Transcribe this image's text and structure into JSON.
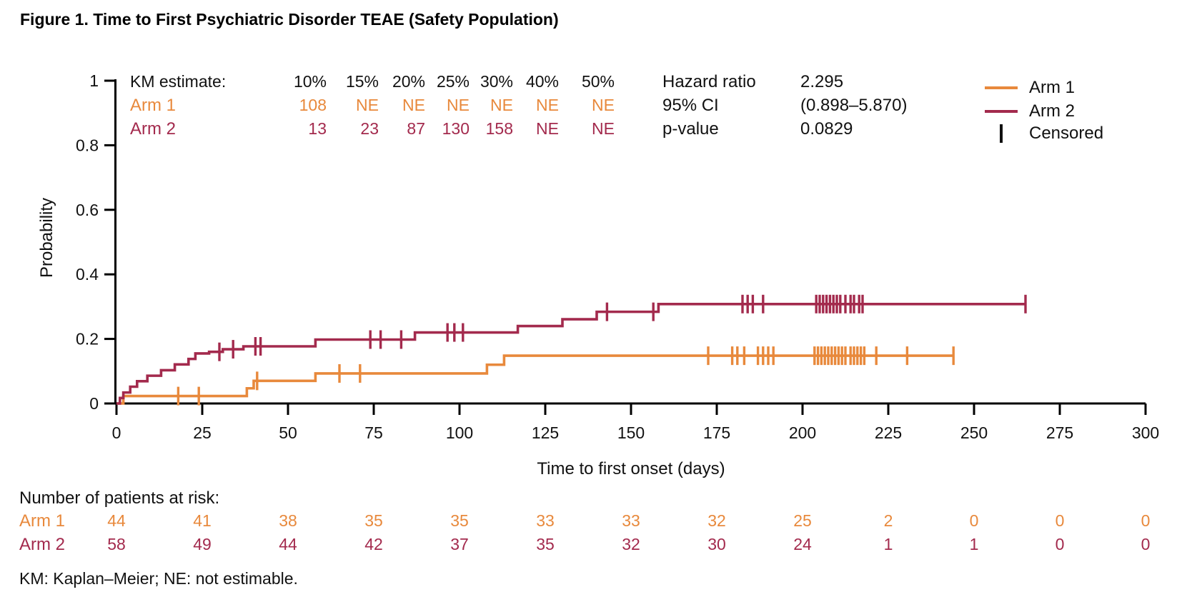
{
  "title": "Figure 1. Time to First Psychiatric Disorder TEAE (Safety Population)",
  "km_table": {
    "header_label": "KM estimate:",
    "columns": [
      "10%",
      "15%",
      "20%",
      "25%",
      "30%",
      "40%",
      "50%"
    ],
    "rows": [
      {
        "name": "Arm 1",
        "color": "#E8893C",
        "values": [
          "108",
          "NE",
          "NE",
          "NE",
          "NE",
          "NE",
          "NE"
        ]
      },
      {
        "name": "Arm 2",
        "color": "#A32A4D",
        "values": [
          "13",
          "23",
          "87",
          "130",
          "158",
          "NE",
          "NE"
        ]
      }
    ]
  },
  "stats": {
    "rows": [
      {
        "label": "Hazard ratio",
        "value": "2.295"
      },
      {
        "label": "95% CI",
        "value": "(0.898–5.870)"
      },
      {
        "label": "p-value",
        "value": "0.0829"
      }
    ]
  },
  "legend": {
    "items": [
      {
        "label": "Arm 1",
        "color": "#E8893C",
        "symbol": "line"
      },
      {
        "label": "Arm 2",
        "color": "#A32A4D",
        "symbol": "line"
      },
      {
        "label": "Censored",
        "color": "#111111",
        "symbol": "tick"
      }
    ]
  },
  "chart_data": {
    "type": "line",
    "subtype": "kaplan-meier-step",
    "title": "",
    "xlabel": "Time to first onset (days)",
    "ylabel": "Probability",
    "xlim": [
      0,
      300
    ],
    "ylim": [
      0,
      1
    ],
    "xticks": [
      0,
      25,
      50,
      75,
      100,
      125,
      150,
      175,
      200,
      225,
      250,
      275,
      300
    ],
    "yticks": [
      0,
      0.2,
      0.4,
      0.6,
      0.8,
      1
    ],
    "grid": false,
    "legend_position": "top-right",
    "axis_color": "#000000",
    "series": [
      {
        "name": "Arm 1",
        "color": "#E8893C",
        "steps": [
          [
            0,
            0
          ],
          [
            2,
            0.023
          ],
          [
            38,
            0.047
          ],
          [
            40,
            0.07
          ],
          [
            58,
            0.093
          ],
          [
            108,
            0.12
          ],
          [
            113,
            0.148
          ]
        ],
        "end_day": 244,
        "censored": [
          18,
          24,
          41,
          65,
          71,
          172.5,
          179.5,
          181,
          183,
          187,
          188.5,
          190,
          191.5,
          203.5,
          204.5,
          205.5,
          206.5,
          207.5,
          208.5,
          209.5,
          210.5,
          211.5,
          212.5,
          214,
          215,
          216,
          217,
          218,
          221.5,
          230.5,
          244
        ]
      },
      {
        "name": "Arm 2",
        "color": "#A32A4D",
        "steps": [
          [
            0,
            0
          ],
          [
            1,
            0.017
          ],
          [
            2,
            0.034
          ],
          [
            4,
            0.052
          ],
          [
            6,
            0.069
          ],
          [
            9,
            0.086
          ],
          [
            13,
            0.103
          ],
          [
            17,
            0.121
          ],
          [
            21,
            0.138
          ],
          [
            23,
            0.155
          ],
          [
            27,
            0.16
          ],
          [
            31,
            0.168
          ],
          [
            37,
            0.177
          ],
          [
            58,
            0.198
          ],
          [
            87,
            0.22
          ],
          [
            117,
            0.24
          ],
          [
            130,
            0.261
          ],
          [
            140,
            0.284
          ],
          [
            158,
            0.308
          ]
        ],
        "end_day": 265,
        "censored": [
          30,
          34,
          40.5,
          42,
          74,
          77,
          83,
          96.5,
          98.5,
          101,
          143,
          156.5,
          182.5,
          184,
          185.5,
          188.5,
          204,
          205,
          206,
          207,
          208,
          209,
          210,
          211,
          212.5,
          214,
          215,
          216.5,
          217.5,
          265
        ]
      }
    ]
  },
  "risk_table": {
    "title": "Number of patients at risk:",
    "times": [
      0,
      25,
      50,
      75,
      100,
      125,
      150,
      175,
      200,
      225,
      250,
      275,
      300
    ],
    "rows": [
      {
        "name": "Arm 1",
        "color": "#E8893C",
        "values": [
          "44",
          "41",
          "38",
          "35",
          "35",
          "33",
          "33",
          "32",
          "25",
          "2",
          "0",
          "0",
          "0"
        ]
      },
      {
        "name": "Arm 2",
        "color": "#A32A4D",
        "values": [
          "58",
          "49",
          "44",
          "42",
          "37",
          "35",
          "32",
          "30",
          "24",
          "1",
          "1",
          "0",
          "0"
        ]
      }
    ]
  },
  "footnote": "KM: Kaplan–Meier; NE: not estimable."
}
